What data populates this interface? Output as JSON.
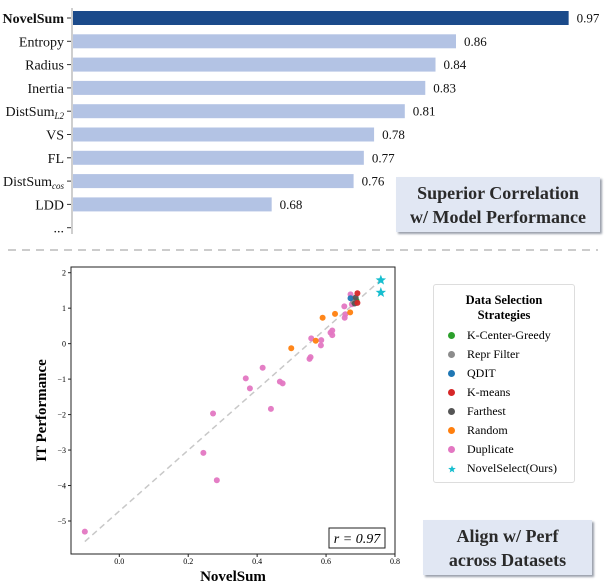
{
  "chart_data": [
    {
      "type": "bar",
      "orientation": "horizontal",
      "categories": [
        "NovelSum",
        "Entropy",
        "Radius",
        "Inertia",
        "DistSum_L2",
        "VS",
        "FL",
        "DistSum_cos",
        "LDD",
        "..."
      ],
      "category_labels": [
        {
          "main": "NovelSum",
          "sub": ""
        },
        {
          "main": "Entropy",
          "sub": ""
        },
        {
          "main": "Radius",
          "sub": ""
        },
        {
          "main": "Inertia",
          "sub": ""
        },
        {
          "main": "DistSum",
          "sub": "L2"
        },
        {
          "main": "VS",
          "sub": ""
        },
        {
          "main": "FL",
          "sub": ""
        },
        {
          "main": "DistSum",
          "sub": "cos"
        },
        {
          "main": "LDD",
          "sub": ""
        },
        {
          "main": "...",
          "sub": ""
        }
      ],
      "values": [
        0.97,
        0.86,
        0.84,
        0.83,
        0.81,
        0.78,
        0.77,
        0.76,
        0.68,
        null
      ],
      "value_labels": [
        "0.97",
        "0.86",
        "0.84",
        "0.83",
        "0.81",
        "0.78",
        "0.77",
        "0.76",
        "0.68",
        ""
      ],
      "highlight_color": "#1b4a8a",
      "bar_color": "#b3c3e4",
      "annotation": {
        "line1": "Superior Correlation",
        "line2": "w/ Model Performance"
      }
    },
    {
      "type": "scatter",
      "xlabel": "NovelSum",
      "ylabel": "IT Performance",
      "xlim": [
        -0.14,
        0.81
      ],
      "ylim": [
        -5.9,
        2.15
      ],
      "xticks": [
        "0.0",
        "0.2",
        "0.4",
        "0.6",
        "0.8"
      ],
      "xtick_values": [
        0.0,
        0.2,
        0.4,
        0.6,
        0.8
      ],
      "yticks": [
        "2",
        "1",
        "0",
        "−1",
        "−2",
        "−3",
        "−4",
        "−5"
      ],
      "ytick_values": [
        2,
        1,
        0,
        -1,
        -2,
        -3,
        -4,
        -5
      ],
      "fit_line": {
        "x": [
          -0.1,
          0.756
        ],
        "y": [
          -5.58,
          1.77
        ],
        "color": "#c8c8c8"
      },
      "correlation_label": "r = 0.97",
      "legend": {
        "title_line1": "Data Selection",
        "title_line2": "Strategies",
        "position": "right"
      },
      "series": [
        {
          "name": "K-Center-Greedy",
          "color": "#2ca02c",
          "marker": "circle",
          "points": [
            [
              0.688,
              1.22
            ]
          ]
        },
        {
          "name": "Repr Filter",
          "color": "#8c8c8c",
          "marker": "circle",
          "points": [
            [
              0.679,
              1.18
            ]
          ]
        },
        {
          "name": "QDIT",
          "color": "#1f77b4",
          "marker": "circle",
          "points": [
            [
              0.671,
              1.28
            ]
          ]
        },
        {
          "name": "K-means",
          "color": "#d62728",
          "marker": "circle",
          "points": [
            [
              0.691,
              1.42
            ],
            [
              0.691,
              1.15
            ]
          ]
        },
        {
          "name": "Farthest",
          "color": "#555555",
          "marker": "circle",
          "points": [
            [
              0.686,
              1.3
            ],
            [
              0.683,
              1.13
            ]
          ]
        },
        {
          "name": "Random",
          "color": "#ff7f0e",
          "marker": "circle",
          "points": [
            [
              0.499,
              -0.13
            ],
            [
              0.57,
              0.08
            ],
            [
              0.59,
              0.73
            ],
            [
              0.626,
              0.84
            ],
            [
              0.67,
              0.88
            ]
          ]
        },
        {
          "name": "Duplicate",
          "color": "#e377c2",
          "marker": "circle",
          "points": [
            [
              -0.1,
              -5.3
            ],
            [
              0.244,
              -3.08
            ],
            [
              0.283,
              -3.85
            ],
            [
              0.272,
              -1.97
            ],
            [
              0.367,
              -0.98
            ],
            [
              0.379,
              -1.26
            ],
            [
              0.416,
              -0.68
            ],
            [
              0.44,
              -1.84
            ],
            [
              0.466,
              -1.07
            ],
            [
              0.474,
              -1.12
            ],
            [
              0.552,
              -0.43
            ],
            [
              0.555,
              -0.38
            ],
            [
              0.557,
              0.15
            ],
            [
              0.585,
              -0.05
            ],
            [
              0.586,
              0.1
            ],
            [
              0.613,
              0.31
            ],
            [
              0.618,
              0.37
            ],
            [
              0.618,
              0.24
            ],
            [
              0.654,
              0.73
            ],
            [
              0.653,
              1.05
            ],
            [
              0.656,
              0.83
            ],
            [
              0.671,
              1.39
            ],
            [
              0.675,
              1.11
            ],
            [
              0.679,
              1.25
            ]
          ]
        },
        {
          "name": "NovelSelect(Ours)",
          "color": "#17becf",
          "marker": "star",
          "points": [
            [
              0.759,
              1.79
            ],
            [
              0.759,
              1.44
            ]
          ]
        }
      ],
      "annotation": {
        "line1": "Align w/ Perf",
        "line2": "across Datasets"
      }
    }
  ]
}
